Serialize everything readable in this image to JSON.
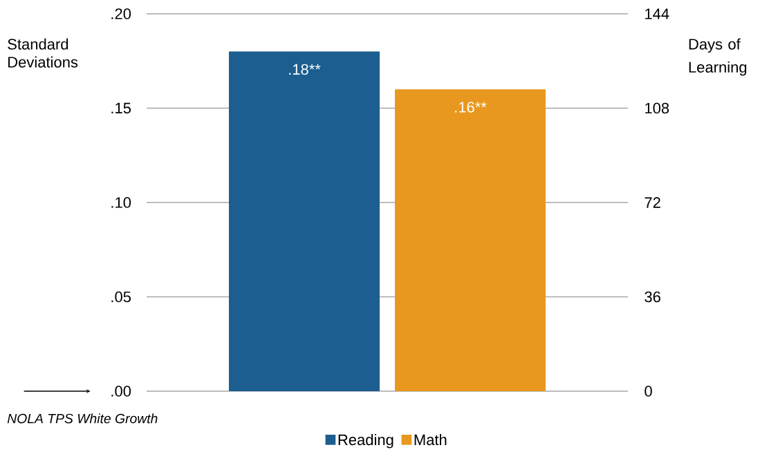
{
  "chart_data": {
    "type": "bar",
    "ylabel": "Standard Deviations",
    "y2label": "Days of Learning",
    "categories": [
      null
    ],
    "series": [
      {
        "name": "Reading",
        "color": "#1b5e8f",
        "values": [
          0.18
        ],
        "value_labels": [
          ".18**"
        ]
      },
      {
        "name": "Math",
        "color": "#e8981e",
        "values": [
          0.16
        ],
        "value_labels": [
          ".16**"
        ]
      }
    ],
    "ylim": [
      0,
      0.2
    ],
    "yticks": [
      {
        "value": 0,
        "label": ".00"
      },
      {
        "value": 0.05,
        "label": ".05"
      },
      {
        "value": 0.1,
        "label": ".10"
      },
      {
        "value": 0.15,
        "label": ".15"
      },
      {
        "value": 0.2,
        "label": ".20"
      }
    ],
    "y2lim": [
      0,
      144
    ],
    "y2ticks": [
      0,
      36,
      72,
      108,
      144
    ],
    "grid": "y",
    "legend": "bottom",
    "annotations": [
      "NOLA TPS White Growth"
    ]
  }
}
